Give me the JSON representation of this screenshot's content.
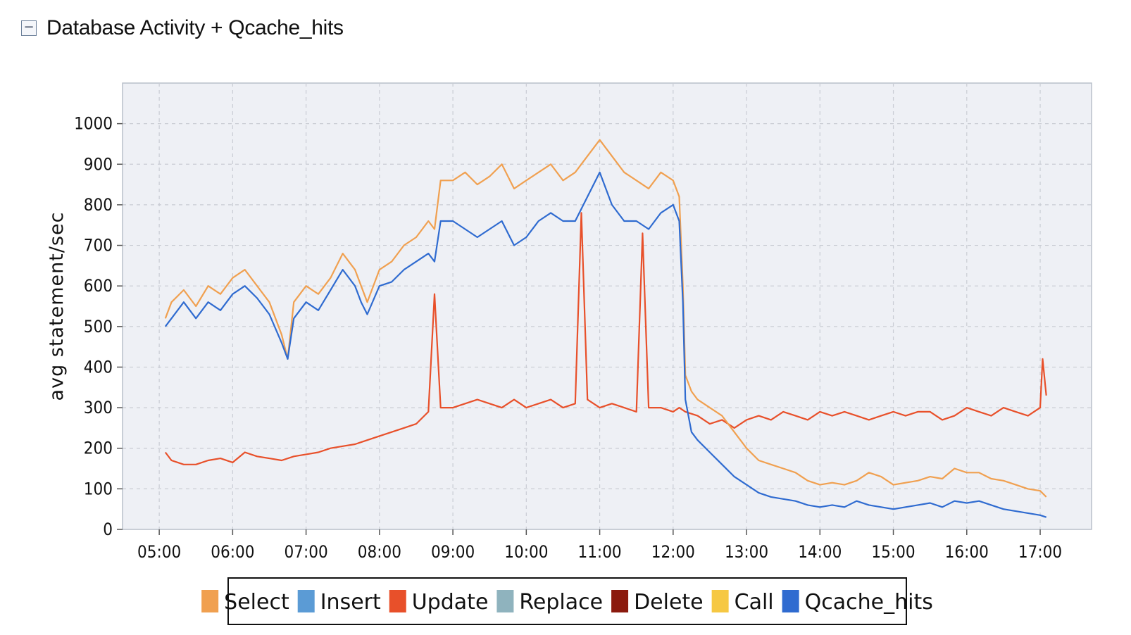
{
  "header": {
    "toggle_symbol": "−",
    "title": "Database Activity + Qcache_hits"
  },
  "chart_data": {
    "type": "line",
    "title": "Database Activity + Qcache_hits",
    "ylabel": "avg statement/sec",
    "xlabel": "",
    "ylim": [
      0,
      1100
    ],
    "yticks": [
      0,
      100,
      200,
      300,
      400,
      500,
      600,
      700,
      800,
      900,
      1000
    ],
    "xlim_hours": [
      4.5,
      17.7
    ],
    "xticks": [
      "05:00",
      "06:00",
      "07:00",
      "08:00",
      "09:00",
      "10:00",
      "11:00",
      "12:00",
      "13:00",
      "14:00",
      "15:00",
      "16:00",
      "17:00"
    ],
    "grid": true,
    "legend_position": "bottom",
    "series": [
      {
        "name": "Select",
        "color": "#f0a050",
        "drawn": true,
        "x": [
          "05:05",
          "05:10",
          "05:20",
          "05:30",
          "05:40",
          "05:50",
          "06:00",
          "06:10",
          "06:20",
          "06:30",
          "06:40",
          "06:45",
          "06:50",
          "07:00",
          "07:10",
          "07:20",
          "07:30",
          "07:40",
          "07:45",
          "07:50",
          "08:00",
          "08:10",
          "08:20",
          "08:30",
          "08:40",
          "08:45",
          "08:50",
          "09:00",
          "09:10",
          "09:20",
          "09:30",
          "09:40",
          "09:50",
          "10:00",
          "10:10",
          "10:20",
          "10:30",
          "10:40",
          "10:50",
          "11:00",
          "11:10",
          "11:20",
          "11:30",
          "11:40",
          "11:50",
          "12:00",
          "12:05",
          "12:08",
          "12:10",
          "12:15",
          "12:20",
          "12:30",
          "12:40",
          "12:50",
          "13:00",
          "13:10",
          "13:20",
          "13:30",
          "13:40",
          "13:50",
          "14:00",
          "14:10",
          "14:20",
          "14:30",
          "14:40",
          "14:50",
          "15:00",
          "15:10",
          "15:20",
          "15:30",
          "15:40",
          "15:50",
          "16:00",
          "16:10",
          "16:20",
          "16:30",
          "16:40",
          "16:50",
          "17:00",
          "17:05"
        ],
        "values": [
          520,
          560,
          590,
          550,
          600,
          580,
          620,
          640,
          600,
          560,
          480,
          420,
          560,
          600,
          580,
          620,
          680,
          640,
          600,
          560,
          640,
          660,
          700,
          720,
          760,
          740,
          860,
          860,
          880,
          850,
          870,
          900,
          840,
          860,
          880,
          900,
          860,
          880,
          920,
          960,
          920,
          880,
          860,
          840,
          880,
          860,
          820,
          600,
          380,
          340,
          320,
          300,
          280,
          240,
          200,
          170,
          160,
          150,
          140,
          120,
          110,
          115,
          110,
          120,
          140,
          130,
          110,
          115,
          120,
          130,
          125,
          150,
          140,
          140,
          125,
          120,
          110,
          100,
          95,
          80
        ]
      },
      {
        "name": "Insert",
        "color": "#5b9bd5",
        "drawn": false,
        "values": []
      },
      {
        "name": "Update",
        "color": "#e8502a",
        "drawn": true,
        "x": [
          "05:05",
          "05:10",
          "05:20",
          "05:30",
          "05:40",
          "05:50",
          "06:00",
          "06:10",
          "06:20",
          "06:30",
          "06:40",
          "06:50",
          "07:00",
          "07:10",
          "07:20",
          "07:30",
          "07:40",
          "07:50",
          "08:00",
          "08:10",
          "08:20",
          "08:30",
          "08:40",
          "08:45",
          "08:50",
          "09:00",
          "09:10",
          "09:20",
          "09:30",
          "09:40",
          "09:50",
          "10:00",
          "10:10",
          "10:20",
          "10:30",
          "10:40",
          "10:45",
          "10:50",
          "11:00",
          "11:10",
          "11:20",
          "11:30",
          "11:35",
          "11:40",
          "11:50",
          "12:00",
          "12:05",
          "12:10",
          "12:20",
          "12:30",
          "12:40",
          "12:50",
          "13:00",
          "13:10",
          "13:20",
          "13:30",
          "13:40",
          "13:50",
          "14:00",
          "14:10",
          "14:20",
          "14:30",
          "14:40",
          "14:50",
          "15:00",
          "15:10",
          "15:20",
          "15:30",
          "15:40",
          "15:50",
          "16:00",
          "16:10",
          "16:20",
          "16:30",
          "16:40",
          "16:50",
          "17:00",
          "17:02",
          "17:05"
        ],
        "values": [
          190,
          170,
          160,
          160,
          170,
          175,
          165,
          190,
          180,
          175,
          170,
          180,
          185,
          190,
          200,
          205,
          210,
          220,
          230,
          240,
          250,
          260,
          290,
          580,
          300,
          300,
          310,
          320,
          310,
          300,
          320,
          300,
          310,
          320,
          300,
          310,
          780,
          320,
          300,
          310,
          300,
          290,
          730,
          300,
          300,
          290,
          300,
          290,
          280,
          260,
          270,
          250,
          270,
          280,
          270,
          290,
          280,
          270,
          290,
          280,
          290,
          280,
          270,
          280,
          290,
          280,
          290,
          290,
          270,
          280,
          300,
          290,
          280,
          300,
          290,
          280,
          300,
          420,
          330
        ]
      },
      {
        "name": "Replace",
        "color": "#8fb3be",
        "drawn": false,
        "values": []
      },
      {
        "name": "Delete",
        "color": "#8b1a0e",
        "drawn": false,
        "values": []
      },
      {
        "name": "Call",
        "color": "#f6c843",
        "drawn": false,
        "values": []
      },
      {
        "name": "Qcache_hits",
        "color": "#2f6bd0",
        "drawn": true,
        "x": [
          "05:05",
          "05:10",
          "05:20",
          "05:30",
          "05:40",
          "05:50",
          "06:00",
          "06:10",
          "06:20",
          "06:30",
          "06:40",
          "06:45",
          "06:50",
          "07:00",
          "07:10",
          "07:20",
          "07:30",
          "07:40",
          "07:45",
          "07:50",
          "08:00",
          "08:10",
          "08:20",
          "08:30",
          "08:40",
          "08:45",
          "08:50",
          "09:00",
          "09:10",
          "09:20",
          "09:30",
          "09:40",
          "09:50",
          "10:00",
          "10:10",
          "10:20",
          "10:30",
          "10:40",
          "10:50",
          "11:00",
          "11:10",
          "11:20",
          "11:30",
          "11:40",
          "11:50",
          "12:00",
          "12:05",
          "12:08",
          "12:10",
          "12:15",
          "12:20",
          "12:30",
          "12:40",
          "12:50",
          "13:00",
          "13:10",
          "13:20",
          "13:30",
          "13:40",
          "13:50",
          "14:00",
          "14:10",
          "14:20",
          "14:30",
          "14:40",
          "14:50",
          "15:00",
          "15:10",
          "15:20",
          "15:30",
          "15:40",
          "15:50",
          "16:00",
          "16:10",
          "16:20",
          "16:30",
          "16:40",
          "16:50",
          "17:00",
          "17:05"
        ],
        "values": [
          500,
          520,
          560,
          520,
          560,
          540,
          580,
          600,
          570,
          530,
          460,
          420,
          520,
          560,
          540,
          590,
          640,
          600,
          560,
          530,
          600,
          610,
          640,
          660,
          680,
          660,
          760,
          760,
          740,
          720,
          740,
          760,
          700,
          720,
          760,
          780,
          760,
          760,
          820,
          880,
          800,
          760,
          760,
          740,
          780,
          800,
          760,
          560,
          320,
          240,
          220,
          190,
          160,
          130,
          110,
          90,
          80,
          75,
          70,
          60,
          55,
          60,
          55,
          70,
          60,
          55,
          50,
          55,
          60,
          65,
          55,
          70,
          65,
          70,
          60,
          50,
          45,
          40,
          35,
          30
        ]
      }
    ]
  },
  "legend": {
    "items": [
      {
        "label": "Select",
        "color": "#f0a050"
      },
      {
        "label": "Insert",
        "color": "#5b9bd5"
      },
      {
        "label": "Update",
        "color": "#e8502a"
      },
      {
        "label": "Replace",
        "color": "#8fb3be"
      },
      {
        "label": "Delete",
        "color": "#8b1a0e"
      },
      {
        "label": "Call",
        "color": "#f6c843"
      },
      {
        "label": "Qcache_hits",
        "color": "#2f6bd0"
      }
    ]
  }
}
